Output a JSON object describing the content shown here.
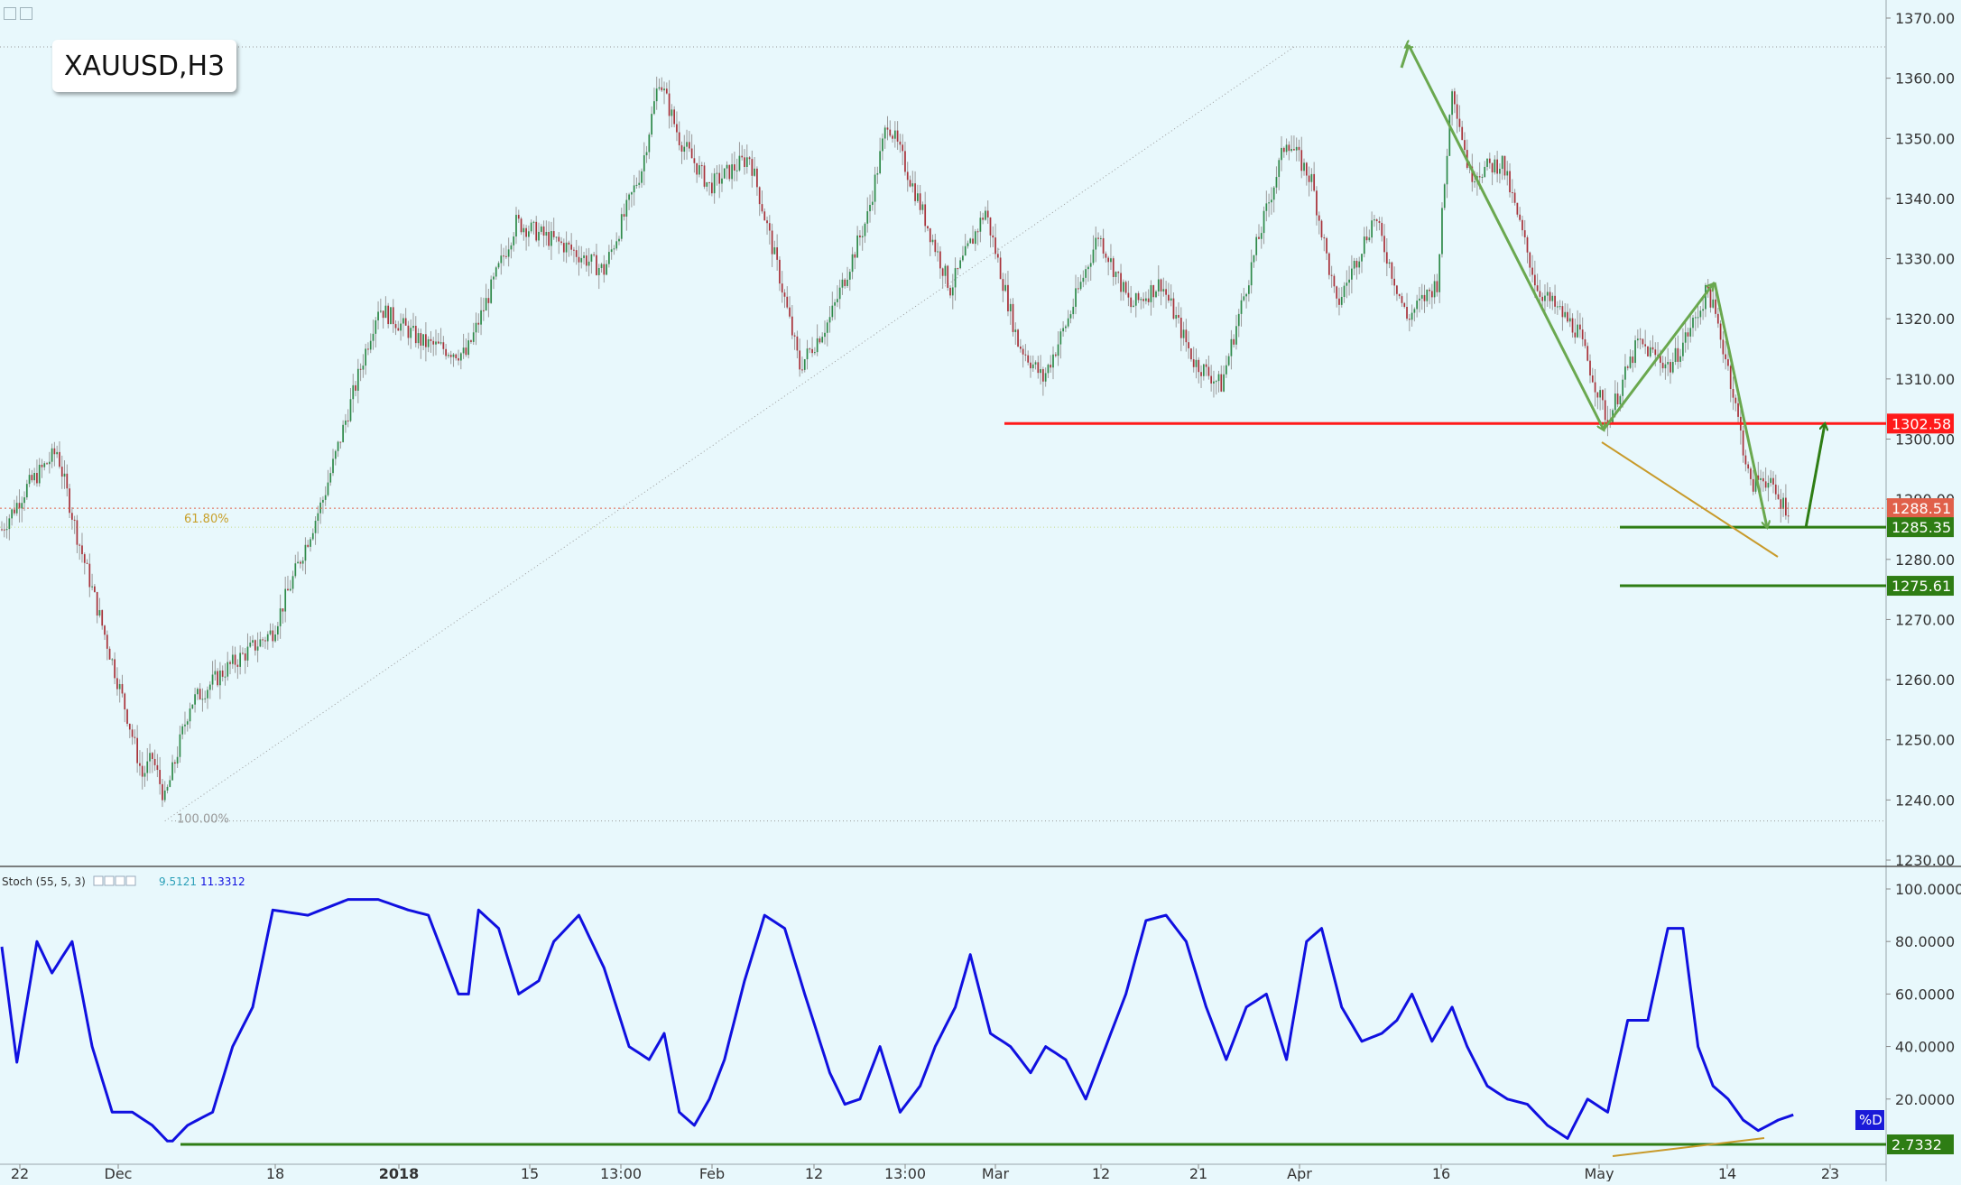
{
  "symbol": "XAUUSD,H3",
  "price_axis": {
    "min": 1230,
    "max": 1370,
    "step": 10,
    "decimals": 2
  },
  "price_labels": [
    {
      "text": "1302.58",
      "value": 1302.58,
      "color": "#ff1a1a"
    },
    {
      "text": "1288.51",
      "value": 1288.51,
      "color": "#e0604a"
    },
    {
      "text": "1285.35",
      "value": 1285.35,
      "color": "#2e7d14"
    },
    {
      "text": "1275.61",
      "value": 1275.61,
      "color": "#2e7d14"
    }
  ],
  "fib": {
    "label_618": "61.80%",
    "label_100": "100.00%",
    "high": 1365.2,
    "low": 1236.5,
    "level_618": 1285.35
  },
  "time_axis": [
    "22",
    "Dec",
    "18",
    "2018",
    "15",
    "13:00",
    "Feb",
    "12",
    "13:00",
    "Mar",
    "12",
    "21",
    "Apr",
    "16",
    "May",
    "14",
    "23"
  ],
  "indicator": {
    "title": "Stoch (55, 5, 3)",
    "value1": "9.5121",
    "value2": "11.3312",
    "axis": [
      "100.0000",
      "80.0000",
      "60.0000",
      "40.0000",
      "20.0000"
    ],
    "d_label": "%D",
    "current": "2.7332",
    "series_color": "#1010e0",
    "support_value": 2.7332
  },
  "chart_data": {
    "type": "line",
    "title": "XAUUSD,H3",
    "price_keypoints": [
      [
        0,
        1285
      ],
      [
        10,
        1292
      ],
      [
        22,
        1298
      ],
      [
        30,
        1284
      ],
      [
        42,
        1266
      ],
      [
        50,
        1254
      ],
      [
        56,
        1244
      ],
      [
        60,
        1247
      ],
      [
        65,
        1240
      ],
      [
        75,
        1256
      ],
      [
        90,
        1262
      ],
      [
        108,
        1268
      ],
      [
        128,
        1290
      ],
      [
        150,
        1322
      ],
      [
        168,
        1316
      ],
      [
        185,
        1314
      ],
      [
        205,
        1336
      ],
      [
        225,
        1332
      ],
      [
        240,
        1328
      ],
      [
        255,
        1345
      ],
      [
        262,
        1360
      ],
      [
        270,
        1350
      ],
      [
        282,
        1342
      ],
      [
        298,
        1347
      ],
      [
        310,
        1327
      ],
      [
        318,
        1312
      ],
      [
        330,
        1320
      ],
      [
        345,
        1337
      ],
      [
        353,
        1353
      ],
      [
        365,
        1340
      ],
      [
        378,
        1325
      ],
      [
        392,
        1338
      ],
      [
        405,
        1316
      ],
      [
        415,
        1310
      ],
      [
        425,
        1320
      ],
      [
        437,
        1334
      ],
      [
        450,
        1322
      ],
      [
        462,
        1326
      ],
      [
        475,
        1313
      ],
      [
        486,
        1309
      ],
      [
        500,
        1332
      ],
      [
        512,
        1350
      ],
      [
        522,
        1343
      ],
      [
        532,
        1322
      ],
      [
        547,
        1337
      ],
      [
        560,
        1320
      ],
      [
        572,
        1326
      ],
      [
        578,
        1359
      ],
      [
        585,
        1344
      ],
      [
        598,
        1346
      ],
      [
        612,
        1325
      ],
      [
        628,
        1318
      ],
      [
        640,
        1303
      ],
      [
        652,
        1316
      ],
      [
        665,
        1312
      ],
      [
        675,
        1320
      ],
      [
        680,
        1325
      ],
      [
        688,
        1312
      ],
      [
        697,
        1292
      ],
      [
        702,
        1294
      ],
      [
        708,
        1290
      ],
      [
        712,
        1288.5
      ]
    ],
    "stoch_keypoints": [
      [
        0,
        78
      ],
      [
        6,
        34
      ],
      [
        14,
        80
      ],
      [
        20,
        68
      ],
      [
        28,
        80
      ],
      [
        36,
        40
      ],
      [
        44,
        15
      ],
      [
        52,
        15
      ],
      [
        60,
        10
      ],
      [
        67,
        3
      ],
      [
        74,
        10
      ],
      [
        84,
        15
      ],
      [
        92,
        40
      ],
      [
        100,
        55
      ],
      [
        108,
        92
      ],
      [
        122,
        90
      ],
      [
        138,
        96
      ],
      [
        150,
        96
      ],
      [
        162,
        92
      ],
      [
        170,
        90
      ],
      [
        176,
        75
      ],
      [
        182,
        60
      ],
      [
        186,
        60
      ],
      [
        190,
        92
      ],
      [
        198,
        85
      ],
      [
        206,
        60
      ],
      [
        214,
        65
      ],
      [
        220,
        80
      ],
      [
        230,
        90
      ],
      [
        240,
        70
      ],
      [
        250,
        40
      ],
      [
        258,
        35
      ],
      [
        264,
        45
      ],
      [
        270,
        15
      ],
      [
        276,
        10
      ],
      [
        282,
        20
      ],
      [
        288,
        35
      ],
      [
        296,
        65
      ],
      [
        304,
        90
      ],
      [
        312,
        85
      ],
      [
        320,
        60
      ],
      [
        330,
        30
      ],
      [
        336,
        18
      ],
      [
        342,
        20
      ],
      [
        350,
        40
      ],
      [
        358,
        15
      ],
      [
        366,
        25
      ],
      [
        372,
        40
      ],
      [
        380,
        55
      ],
      [
        386,
        75
      ],
      [
        394,
        45
      ],
      [
        402,
        40
      ],
      [
        410,
        30
      ],
      [
        416,
        40
      ],
      [
        424,
        35
      ],
      [
        432,
        20
      ],
      [
        440,
        40
      ],
      [
        448,
        60
      ],
      [
        456,
        88
      ],
      [
        464,
        90
      ],
      [
        472,
        80
      ],
      [
        480,
        55
      ],
      [
        488,
        35
      ],
      [
        496,
        55
      ],
      [
        504,
        60
      ],
      [
        512,
        35
      ],
      [
        520,
        80
      ],
      [
        526,
        85
      ],
      [
        534,
        55
      ],
      [
        542,
        42
      ],
      [
        550,
        45
      ],
      [
        556,
        50
      ],
      [
        562,
        60
      ],
      [
        570,
        42
      ],
      [
        578,
        55
      ],
      [
        584,
        40
      ],
      [
        592,
        25
      ],
      [
        600,
        20
      ],
      [
        608,
        18
      ],
      [
        616,
        10
      ],
      [
        624,
        5
      ],
      [
        632,
        20
      ],
      [
        640,
        15
      ],
      [
        648,
        50
      ],
      [
        656,
        50
      ],
      [
        664,
        85
      ],
      [
        670,
        85
      ],
      [
        676,
        40
      ],
      [
        682,
        25
      ],
      [
        688,
        20
      ],
      [
        694,
        12
      ],
      [
        700,
        8
      ],
      [
        708,
        12
      ],
      [
        714,
        14
      ]
    ]
  },
  "colors": {
    "background": "#e8f8fc",
    "candle_up": "#2f8a4a",
    "candle_down": "#a8323a",
    "wick": "#9a9a9a",
    "resistance": "#ff1a1a",
    "support": "#2e7d14",
    "arrow": "#6aa84f",
    "trend_orange": "#c89a2a"
  }
}
